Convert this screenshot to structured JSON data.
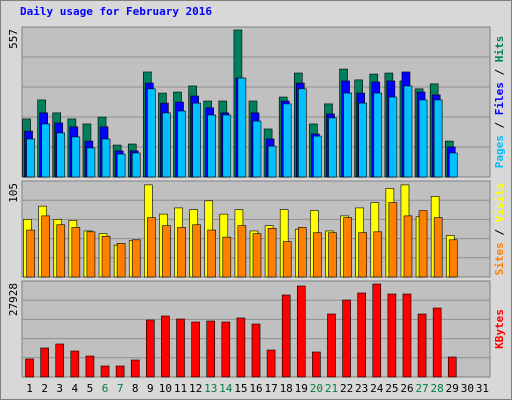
{
  "chart_data": [
    {
      "type": "bar",
      "title": "Daily usage for February 2016",
      "ylim": [
        0,
        557
      ],
      "series": [
        {
          "name": "Hits",
          "color": "#00805c",
          "values": [
            220,
            292,
            243,
            220,
            201,
            227,
            121,
            125,
            398,
            318,
            322,
            345,
            288,
            288,
            557,
            288,
            182,
            303,
            394,
            201,
            277,
            409,
            368,
            390,
            394,
            364,
            334,
            353,
            136,
            0,
            0
          ]
        },
        {
          "name": "Files",
          "color": "#0000ff",
          "values": [
            174,
            243,
            205,
            190,
            136,
            190,
            99,
            99,
            356,
            280,
            284,
            307,
            262,
            243,
            375,
            243,
            144,
            288,
            356,
            163,
            239,
            364,
            318,
            360,
            364,
            398,
            322,
            311,
            114,
            0,
            0
          ]
        },
        {
          "name": "Pages",
          "color": "#00c0ff",
          "values": [
            144,
            201,
            167,
            152,
            110,
            144,
            87,
            91,
            334,
            243,
            250,
            280,
            235,
            235,
            375,
            212,
            117,
            277,
            334,
            155,
            224,
            318,
            280,
            318,
            303,
            345,
            292,
            292,
            91,
            0,
            0
          ]
        }
      ]
    },
    {
      "type": "bar",
      "ylim": [
        0,
        105
      ],
      "series": [
        {
          "name": "Visits",
          "color": "#ffff00",
          "values": [
            65,
            80,
            65,
            64,
            52,
            49,
            36,
            41,
            104,
            71,
            78,
            76,
            86,
            71,
            76,
            52,
            58,
            76,
            54,
            75,
            52,
            69,
            78,
            84,
            100,
            104,
            68,
            91,
            47,
            0,
            0
          ]
        },
        {
          "name": "Sites",
          "color": "#ff8000",
          "values": [
            53,
            69,
            59,
            56,
            51,
            46,
            38,
            42,
            67,
            58,
            56,
            59,
            53,
            45,
            58,
            49,
            55,
            40,
            56,
            50,
            50,
            67,
            50,
            51,
            84,
            69,
            75,
            67,
            42,
            0,
            0
          ]
        }
      ]
    },
    {
      "type": "bar",
      "ylim": [
        0,
        27928
      ],
      "categories": [
        "1",
        "2",
        "3",
        "4",
        "5",
        "6",
        "7",
        "8",
        "9",
        "10",
        "11",
        "12",
        "13",
        "14",
        "15",
        "16",
        "17",
        "18",
        "19",
        "20",
        "21",
        "22",
        "23",
        "24",
        "25",
        "26",
        "27",
        "28",
        "29",
        "30",
        "31"
      ],
      "weekend_indices": [
        5,
        6,
        12,
        13,
        19,
        20,
        26,
        27
      ],
      "weekend_color": "#008040",
      "series": [
        {
          "name": "KBytes",
          "color": "#ff0000",
          "values": [
            5405,
            8709,
            9910,
            7808,
            6306,
            3303,
            3303,
            5105,
            17118,
            18319,
            17418,
            16517,
            16817,
            16517,
            17718,
            15916,
            8108,
            24625,
            27328,
            7508,
            18919,
            23123,
            25225,
            27928,
            24925,
            24925,
            18919,
            20721,
            6006,
            0,
            0
          ]
        }
      ]
    }
  ]
}
